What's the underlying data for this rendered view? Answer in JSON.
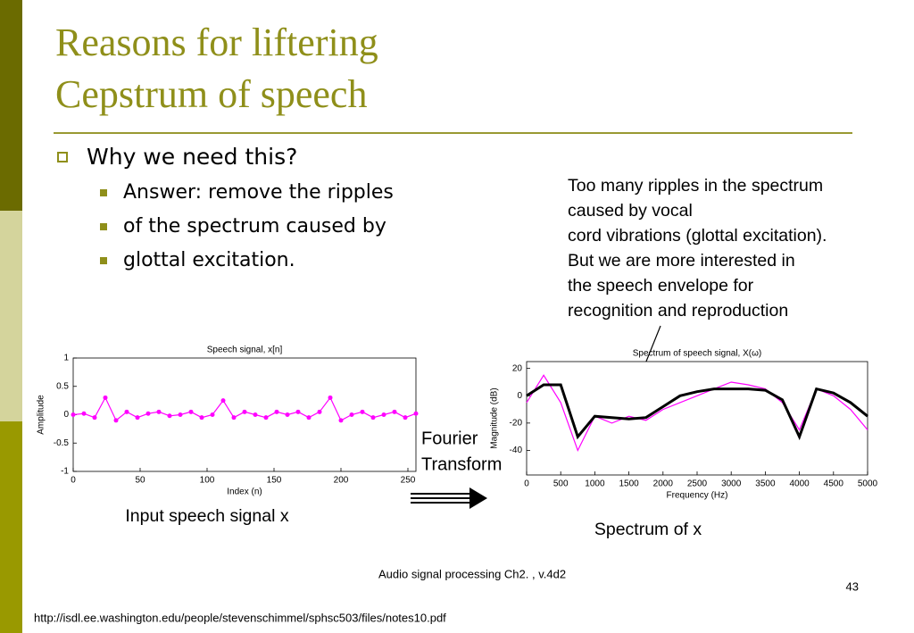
{
  "header": {
    "title_lines": [
      "Reasons for liftering",
      "Cepstrum of speech"
    ]
  },
  "bullets": {
    "main": "Why we need this?",
    "sub": [
      "Answer: remove the ripples",
      "of the spectrum caused by",
      "glottal excitation."
    ]
  },
  "note": [
    "Too many ripples in the spectrum",
    "caused by vocal",
    "cord vibrations (glottal excitation).",
    "But we are more interested in",
    "the speech envelope for",
    "recognition and reproduction"
  ],
  "plots": [
    {
      "title": "Speech signal, x[n]",
      "xlabel": "Index (n)",
      "ylabel": "Amplitude",
      "xlim": [
        0,
        256
      ],
      "ylim": [
        -1,
        1
      ],
      "xticks": [
        0,
        50,
        100,
        150,
        200,
        250
      ],
      "yticks": [
        1,
        0.5,
        0,
        -0.5,
        -1
      ],
      "x": [
        0,
        8,
        16,
        24,
        32,
        40,
        48,
        56,
        64,
        72,
        80,
        88,
        96,
        104,
        112,
        120,
        128,
        136,
        144,
        152,
        160,
        168,
        176,
        184,
        192,
        200,
        208,
        216,
        224,
        232,
        240,
        248,
        256
      ],
      "series": [
        {
          "color": "#ff00ff",
          "values": [
            0,
            0.02,
            -0.05,
            0.3,
            -0.1,
            0.05,
            -0.05,
            0.02,
            0.05,
            -0.02,
            0,
            0.05,
            -0.05,
            0.0,
            0.25,
            -0.05,
            0.05,
            0,
            -0.05,
            0.05,
            0,
            0.05,
            -0.05,
            0.05,
            0.3,
            -0.1,
            0,
            0.05,
            -0.05,
            0,
            0.05,
            -0.05,
            0.02
          ]
        }
      ],
      "caption": "Input speech signal x"
    },
    {
      "title": "Spectrum of speech signal, X(ω)",
      "xlabel": "Frequency (Hz)",
      "ylabel": "Magnitude (dB)",
      "xlim": [
        0,
        5000
      ],
      "ylim": [
        -58,
        25
      ],
      "xticks": [
        0,
        500,
        1000,
        1500,
        2000,
        2500,
        3000,
        3500,
        4000,
        4500,
        5000
      ],
      "yticks": [
        20,
        0,
        -20,
        -40
      ],
      "x": [
        0,
        250,
        500,
        750,
        1000,
        1250,
        1500,
        1750,
        2000,
        2250,
        2500,
        2750,
        3000,
        3250,
        3500,
        3750,
        4000,
        4250,
        4500,
        4750,
        5000
      ],
      "series": [
        {
          "color": "#ff00ff",
          "values": [
            -5,
            15,
            -5,
            -40,
            -15,
            -20,
            -15,
            -18,
            -10,
            -5,
            0,
            5,
            10,
            8,
            5,
            -5,
            -25,
            5,
            0,
            -10,
            -25
          ]
        },
        {
          "color": "#000000",
          "values": [
            0,
            8,
            8,
            -30,
            -15,
            -16,
            -17,
            -16,
            -8,
            0,
            3,
            5,
            5,
            5,
            4,
            -3,
            -30,
            5,
            2,
            -5,
            -15
          ]
        }
      ],
      "caption": "Spectrum of x"
    }
  ],
  "transform_label": [
    "Fourier",
    "Transform"
  ],
  "footer": {
    "course": "Audio signal processing Ch2. , v.4d2",
    "page": "43",
    "url": "http://isdl.ee.washington.edu/people/stevenschimmel/sphsc503/files/notes10.pdf"
  }
}
